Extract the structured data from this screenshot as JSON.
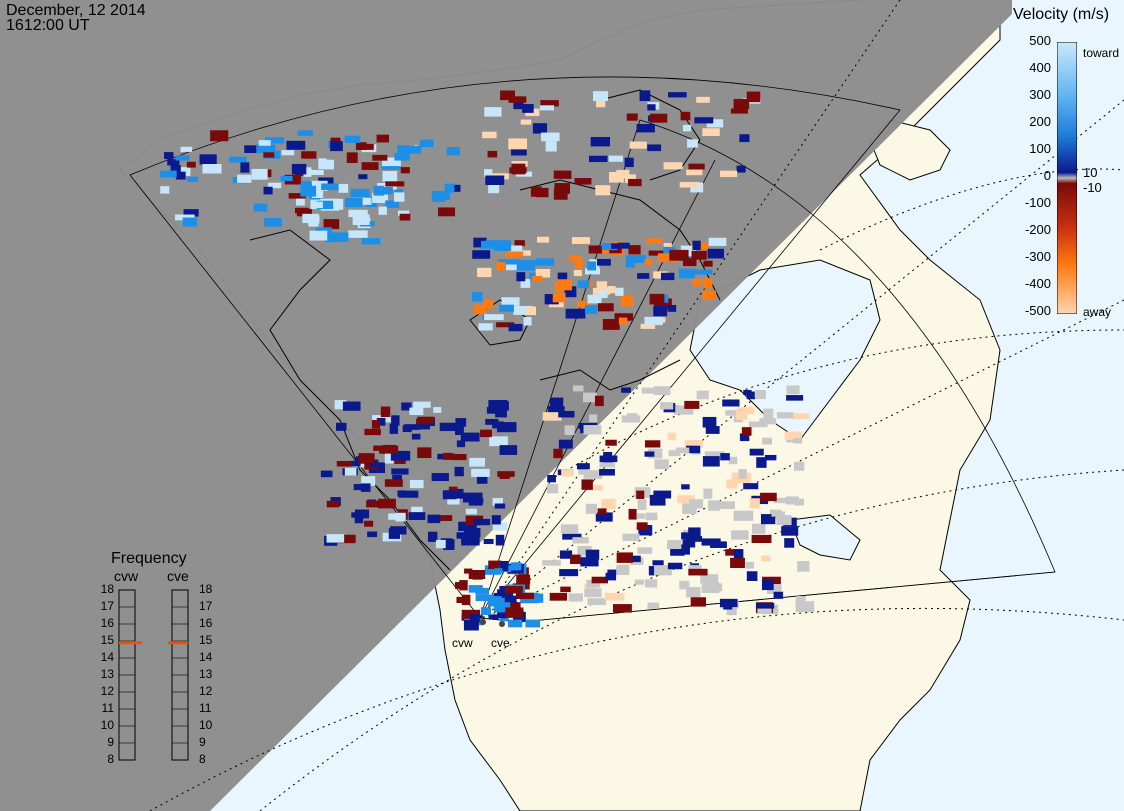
{
  "header": {
    "date": "December, 12 2014",
    "time": "1612:00 UT"
  },
  "colorbar": {
    "title": "Velocity (m/s)",
    "ticks": [
      "500",
      "400",
      "300",
      "200",
      "100",
      "10",
      "0",
      "-10",
      "-100",
      "-200",
      "-300",
      "-400",
      "-500"
    ],
    "toward_label": "toward",
    "away_label": "away",
    "colors": {
      "toward_light": "#c8e6fa",
      "toward_mid": "#1e8fe6",
      "toward_dark": "#0a1a8c",
      "away_dark": "#7a0a0a",
      "away_mid": "#ff7a10",
      "away_light": "#ffd6b0",
      "ground_scatter": "#c8c8c8"
    }
  },
  "frequency_panel": {
    "title": "Frequency",
    "stations": [
      "cvw",
      "cve"
    ],
    "scale": [
      "18",
      "17",
      "16",
      "15",
      "14",
      "13",
      "12",
      "11",
      "10",
      "9",
      "8"
    ],
    "cvw_freq_mhz": 14.9,
    "cve_freq_mhz": 14.9,
    "marker_color": "#e8501a"
  },
  "map": {
    "background_ocean": "#eaf6fd",
    "land_color": "#fbf8e6",
    "night_shade": "#8c8c8c",
    "radar_sites": [
      {
        "name": "cvw"
      },
      {
        "name": "cve"
      }
    ]
  }
}
